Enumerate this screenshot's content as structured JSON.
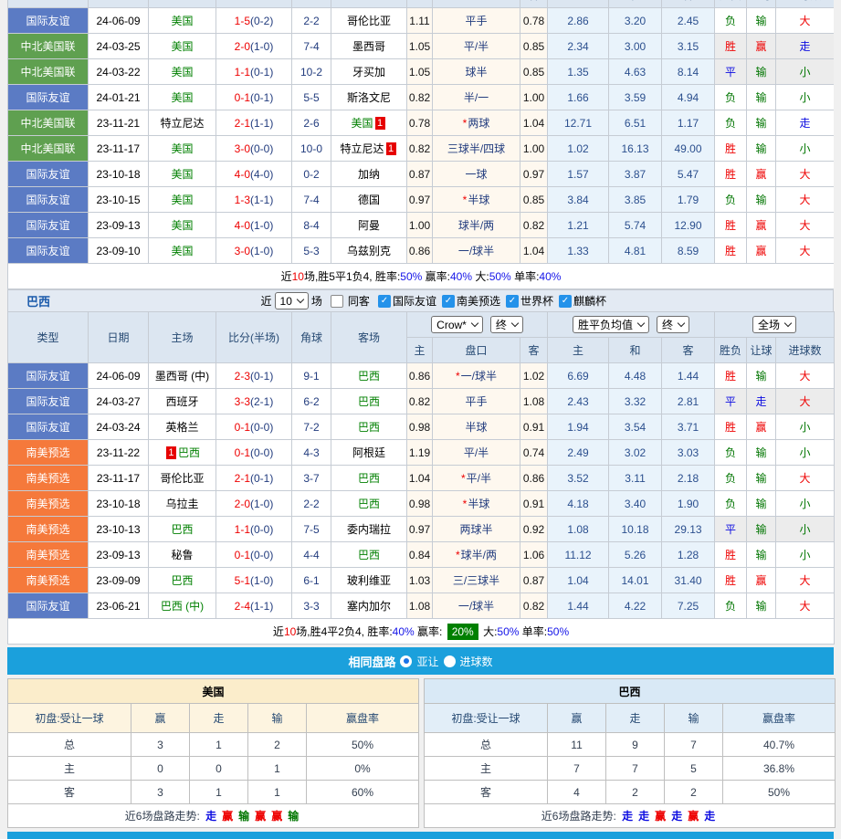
{
  "colors": {
    "accent_blue": "#5B7BC4",
    "accent_green": "#5FA050",
    "accent_orange": "#F5793B",
    "bar_cyan": "#1BA0DC",
    "header_bg": "#DCE6F1",
    "title_blue": "#1A5AAB",
    "red": "#EE0000",
    "blue": "#0B0BE0",
    "green": "#007500",
    "navy": "#223C7E",
    "mean_blue": "#2B4F8E",
    "cream_bg": "#FEF8EF",
    "lightblue_bg": "#E9F3FB",
    "stripe_bg": "#ECECEC",
    "badge_red": "#E60000",
    "check_blue": "#2492EA",
    "cmp_cream": "#FBEDCB",
    "cmp_cream2": "#FDF4E0",
    "cmp_blue": "#D9E9F6",
    "cmp_blue2": "#E2EEF8",
    "hl_green": "#008000"
  },
  "match_header": [
    "主",
    "盘口",
    "客",
    "主",
    "和",
    "客",
    "胜负",
    "让球",
    "进球数"
  ],
  "usa": {
    "rows": [
      {
        "t": "国际友谊",
        "tc": "blue",
        "d": "24-06-09",
        "h": "美国",
        "hc": "g",
        "hb": null,
        "s": "1-5",
        "sh": "(0-2)",
        "cn": "2-2",
        "a": "哥伦比亚",
        "ac": "k",
        "ab": null,
        "o1": "1.11",
        "st": false,
        "p": "平手",
        "o2": "0.78",
        "m": [
          "2.86",
          "3.20",
          "2.45"
        ],
        "r": [
          "负",
          "输",
          "大"
        ],
        "gr": false
      },
      {
        "t": "中北美国联",
        "tc": "green",
        "d": "24-03-25",
        "h": "美国",
        "hc": "g",
        "hb": null,
        "s": "2-0",
        "sh": "(1-0)",
        "cn": "7-4",
        "a": "墨西哥",
        "ac": "k",
        "ab": null,
        "o1": "1.05",
        "st": false,
        "p": "平/半",
        "o2": "0.85",
        "m": [
          "2.34",
          "3.00",
          "3.15"
        ],
        "r": [
          "胜",
          "赢",
          "走"
        ],
        "gr": true
      },
      {
        "t": "中北美国联",
        "tc": "green",
        "d": "24-03-22",
        "h": "美国",
        "hc": "g",
        "hb": null,
        "s": "1-1",
        "sh": "(0-1)",
        "cn": "10-2",
        "a": "牙买加",
        "ac": "k",
        "ab": null,
        "o1": "1.05",
        "st": false,
        "p": "球半",
        "o2": "0.85",
        "m": [
          "1.35",
          "4.63",
          "8.14"
        ],
        "r": [
          "平",
          "输",
          "小"
        ],
        "gr": true
      },
      {
        "t": "国际友谊",
        "tc": "blue",
        "d": "24-01-21",
        "h": "美国",
        "hc": "g",
        "hb": null,
        "s": "0-1",
        "sh": "(0-1)",
        "cn": "5-5",
        "a": "斯洛文尼",
        "ac": "k",
        "ab": null,
        "o1": "0.82",
        "st": false,
        "p": "半/一",
        "o2": "1.00",
        "m": [
          "1.66",
          "3.59",
          "4.94"
        ],
        "r": [
          "负",
          "输",
          "小"
        ],
        "gr": false
      },
      {
        "t": "中北美国联",
        "tc": "green",
        "d": "23-11-21",
        "h": "特立尼达",
        "hc": "k",
        "hb": null,
        "s": "2-1",
        "sh": "(1-1)",
        "cn": "2-6",
        "a": "美国",
        "ac": "g",
        "ab": "1",
        "o1": "0.78",
        "st": true,
        "p": "两球",
        "o2": "1.04",
        "m": [
          "12.71",
          "6.51",
          "1.17"
        ],
        "r": [
          "负",
          "输",
          "走"
        ],
        "gr": false
      },
      {
        "t": "中北美国联",
        "tc": "green",
        "d": "23-11-17",
        "h": "美国",
        "hc": "g",
        "hb": null,
        "s": "3-0",
        "sh": "(0-0)",
        "cn": "10-0",
        "a": "特立尼达",
        "ac": "k",
        "ab": "1",
        "o1": "0.82",
        "st": false,
        "p": "三球半/四球",
        "o2": "1.00",
        "m": [
          "1.02",
          "16.13",
          "49.00"
        ],
        "r": [
          "胜",
          "输",
          "小"
        ],
        "gr": false
      },
      {
        "t": "国际友谊",
        "tc": "blue",
        "d": "23-10-18",
        "h": "美国",
        "hc": "g",
        "hb": null,
        "s": "4-0",
        "sh": "(4-0)",
        "cn": "0-2",
        "a": "加纳",
        "ac": "k",
        "ab": null,
        "o1": "0.87",
        "st": false,
        "p": "一球",
        "o2": "0.97",
        "m": [
          "1.57",
          "3.87",
          "5.47"
        ],
        "r": [
          "胜",
          "赢",
          "大"
        ],
        "gr": false
      },
      {
        "t": "国际友谊",
        "tc": "blue",
        "d": "23-10-15",
        "h": "美国",
        "hc": "g",
        "hb": null,
        "s": "1-3",
        "sh": "(1-1)",
        "cn": "7-4",
        "a": "德国",
        "ac": "k",
        "ab": null,
        "o1": "0.97",
        "st": true,
        "p": "半球",
        "o2": "0.85",
        "m": [
          "3.84",
          "3.85",
          "1.79"
        ],
        "r": [
          "负",
          "输",
          "大"
        ],
        "gr": false
      },
      {
        "t": "国际友谊",
        "tc": "blue",
        "d": "23-09-13",
        "h": "美国",
        "hc": "g",
        "hb": null,
        "s": "4-0",
        "sh": "(1-0)",
        "cn": "8-4",
        "a": "阿曼",
        "ac": "k",
        "ab": null,
        "o1": "1.00",
        "st": false,
        "p": "球半/两",
        "o2": "0.82",
        "m": [
          "1.21",
          "5.74",
          "12.90"
        ],
        "r": [
          "胜",
          "赢",
          "大"
        ],
        "gr": false
      },
      {
        "t": "国际友谊",
        "tc": "blue",
        "d": "23-09-10",
        "h": "美国",
        "hc": "g",
        "hb": null,
        "s": "3-0",
        "sh": "(1-0)",
        "cn": "5-3",
        "a": "乌兹别克",
        "ac": "k",
        "ab": null,
        "o1": "0.86",
        "st": false,
        "p": "一/球半",
        "o2": "1.04",
        "m": [
          "1.33",
          "4.81",
          "8.59"
        ],
        "r": [
          "胜",
          "赢",
          "大"
        ],
        "gr": false
      }
    ],
    "summary": [
      {
        "t": "近",
        "c": "k"
      },
      {
        "t": "10",
        "c": "r"
      },
      {
        "t": "场,胜5平1负4, 胜率:",
        "c": "k"
      },
      {
        "t": "50%",
        "c": "b"
      },
      {
        "t": " 赢率:",
        "c": "k"
      },
      {
        "t": "40%",
        "c": "b"
      },
      {
        "t": " 大:",
        "c": "k"
      },
      {
        "t": "50%",
        "c": "b"
      },
      {
        "t": " 单率:",
        "c": "k"
      },
      {
        "t": "40%",
        "c": "b"
      }
    ]
  },
  "brazil": {
    "title": "巴西",
    "filters": {
      "near": "近",
      "count": "10",
      "chang": "场",
      "same_away": "同客",
      "same_away_checked": false,
      "leagues": [
        {
          "label": "国际友谊",
          "checked": true
        },
        {
          "label": "南美预选",
          "checked": true
        },
        {
          "label": "世界杯",
          "checked": true
        },
        {
          "label": "麒麟杯",
          "checked": true
        }
      ]
    },
    "cols": [
      "类型",
      "日期",
      "主场",
      "比分(半场)",
      "角球",
      "客场"
    ],
    "selects": {
      "s1": "Crow*",
      "s2": "终",
      "s3": "胜平负均值",
      "s4": "终",
      "s5": "全场"
    },
    "rows": [
      {
        "t": "国际友谊",
        "tc": "blue",
        "d": "24-06-09",
        "h": "墨西哥 (中)",
        "hc": "k",
        "hb": null,
        "s": "2-3",
        "sh": "(0-1)",
        "cn": "9-1",
        "a": "巴西",
        "ac": "g",
        "ab": null,
        "o1": "0.86",
        "st": true,
        "p": "一/球半",
        "o2": "1.02",
        "m": [
          "6.69",
          "4.48",
          "1.44"
        ],
        "r": [
          "胜",
          "输",
          "大"
        ],
        "gr": false
      },
      {
        "t": "国际友谊",
        "tc": "blue",
        "d": "24-03-27",
        "h": "西班牙",
        "hc": "k",
        "hb": null,
        "s": "3-3",
        "sh": "(2-1)",
        "cn": "6-2",
        "a": "巴西",
        "ac": "g",
        "ab": null,
        "o1": "0.82",
        "st": false,
        "p": "平手",
        "o2": "1.08",
        "m": [
          "2.43",
          "3.32",
          "2.81"
        ],
        "r": [
          "平",
          "走",
          "大"
        ],
        "gr": true
      },
      {
        "t": "国际友谊",
        "tc": "blue",
        "d": "24-03-24",
        "h": "英格兰",
        "hc": "k",
        "hb": null,
        "s": "0-1",
        "sh": "(0-0)",
        "cn": "7-2",
        "a": "巴西",
        "ac": "g",
        "ab": null,
        "o1": "0.98",
        "st": false,
        "p": "半球",
        "o2": "0.91",
        "m": [
          "1.94",
          "3.54",
          "3.71"
        ],
        "r": [
          "胜",
          "赢",
          "小"
        ],
        "gr": false
      },
      {
        "t": "南美预选",
        "tc": "orange",
        "d": "23-11-22",
        "h": "巴西",
        "hc": "g",
        "hb": "1",
        "s": "0-1",
        "sh": "(0-0)",
        "cn": "4-3",
        "a": "阿根廷",
        "ac": "k",
        "ab": null,
        "o1": "1.19",
        "st": false,
        "p": "平/半",
        "o2": "0.74",
        "m": [
          "2.49",
          "3.02",
          "3.03"
        ],
        "r": [
          "负",
          "输",
          "小"
        ],
        "gr": false
      },
      {
        "t": "南美预选",
        "tc": "orange",
        "d": "23-11-17",
        "h": "哥伦比亚",
        "hc": "k",
        "hb": null,
        "s": "2-1",
        "sh": "(0-1)",
        "cn": "3-7",
        "a": "巴西",
        "ac": "g",
        "ab": null,
        "o1": "1.04",
        "st": true,
        "p": "平/半",
        "o2": "0.86",
        "m": [
          "3.52",
          "3.11",
          "2.18"
        ],
        "r": [
          "负",
          "输",
          "大"
        ],
        "gr": false
      },
      {
        "t": "南美预选",
        "tc": "orange",
        "d": "23-10-18",
        "h": "乌拉圭",
        "hc": "k",
        "hb": null,
        "s": "2-0",
        "sh": "(1-0)",
        "cn": "2-2",
        "a": "巴西",
        "ac": "g",
        "ab": null,
        "o1": "0.98",
        "st": true,
        "p": "半球",
        "o2": "0.91",
        "m": [
          "4.18",
          "3.40",
          "1.90"
        ],
        "r": [
          "负",
          "输",
          "小"
        ],
        "gr": false
      },
      {
        "t": "南美预选",
        "tc": "orange",
        "d": "23-10-13",
        "h": "巴西",
        "hc": "g",
        "hb": null,
        "s": "1-1",
        "sh": "(0-0)",
        "cn": "7-5",
        "a": "委内瑞拉",
        "ac": "k",
        "ab": null,
        "o1": "0.97",
        "st": false,
        "p": "两球半",
        "o2": "0.92",
        "m": [
          "1.08",
          "10.18",
          "29.13"
        ],
        "r": [
          "平",
          "输",
          "小"
        ],
        "gr": true
      },
      {
        "t": "南美预选",
        "tc": "orange",
        "d": "23-09-13",
        "h": "秘鲁",
        "hc": "k",
        "hb": null,
        "s": "0-1",
        "sh": "(0-0)",
        "cn": "4-4",
        "a": "巴西",
        "ac": "g",
        "ab": null,
        "o1": "0.84",
        "st": true,
        "p": "球半/两",
        "o2": "1.06",
        "m": [
          "11.12",
          "5.26",
          "1.28"
        ],
        "r": [
          "胜",
          "输",
          "小"
        ],
        "gr": false
      },
      {
        "t": "南美预选",
        "tc": "orange",
        "d": "23-09-09",
        "h": "巴西",
        "hc": "g",
        "hb": null,
        "s": "5-1",
        "sh": "(1-0)",
        "cn": "6-1",
        "a": "玻利维亚",
        "ac": "k",
        "ab": null,
        "o1": "1.03",
        "st": false,
        "p": "三/三球半",
        "o2": "0.87",
        "m": [
          "1.04",
          "14.01",
          "31.40"
        ],
        "r": [
          "胜",
          "赢",
          "大"
        ],
        "gr": false
      },
      {
        "t": "国际友谊",
        "tc": "blue",
        "d": "23-06-21",
        "h": "巴西 (中)",
        "hc": "g",
        "hb": null,
        "s": "2-4",
        "sh": "(1-1)",
        "cn": "3-3",
        "a": "塞内加尔",
        "ac": "k",
        "ab": null,
        "o1": "1.08",
        "st": false,
        "p": "一/球半",
        "o2": "0.82",
        "m": [
          "1.44",
          "4.22",
          "7.25"
        ],
        "r": [
          "负",
          "输",
          "大"
        ],
        "gr": false
      }
    ],
    "summary": [
      {
        "t": "近",
        "c": "k"
      },
      {
        "t": "10",
        "c": "r"
      },
      {
        "t": "场,胜4平2负4, 胜率:",
        "c": "k"
      },
      {
        "t": "40%",
        "c": "b"
      },
      {
        "t": " 赢率: ",
        "c": "k"
      },
      {
        "t": "20%",
        "c": "hl"
      },
      {
        "t": " 大:",
        "c": "k"
      },
      {
        "t": "50%",
        "c": "b"
      },
      {
        "t": " 单率:",
        "c": "k"
      },
      {
        "t": "50%",
        "c": "b"
      }
    ]
  },
  "bar": {
    "title": "相同盘路",
    "opt1": "亚让",
    "opt1_selected": true,
    "opt2": "进球数",
    "opt2_selected": false
  },
  "compare": {
    "first_col_label": "初盘:受让一球",
    "cols": [
      "赢",
      "走",
      "输",
      "赢盘率"
    ],
    "trend_label": "近6场盘路走势:",
    "tables": [
      {
        "team": "美国",
        "theme": "cream",
        "rows": [
          [
            "总",
            "3",
            "1",
            "2",
            "50%"
          ],
          [
            "主",
            "0",
            "0",
            "1",
            "0%"
          ],
          [
            "客",
            "3",
            "1",
            "1",
            "60%"
          ]
        ],
        "trend": [
          {
            "t": "走",
            "c": "b"
          },
          {
            "t": "赢",
            "c": "r"
          },
          {
            "t": "输",
            "c": "g"
          },
          {
            "t": "赢",
            "c": "r"
          },
          {
            "t": "赢",
            "c": "r"
          },
          {
            "t": "输",
            "c": "g"
          }
        ]
      },
      {
        "team": "巴西",
        "theme": "lblue",
        "rows": [
          [
            "总",
            "11",
            "9",
            "7",
            "40.7%"
          ],
          [
            "主",
            "7",
            "7",
            "5",
            "36.8%"
          ],
          [
            "客",
            "4",
            "2",
            "2",
            "50%"
          ]
        ],
        "trend": [
          {
            "t": "走",
            "c": "b"
          },
          {
            "t": "走",
            "c": "b"
          },
          {
            "t": "赢",
            "c": "r"
          },
          {
            "t": "走",
            "c": "b"
          },
          {
            "t": "赢",
            "c": "r"
          },
          {
            "t": "走",
            "c": "b"
          }
        ]
      }
    ]
  }
}
